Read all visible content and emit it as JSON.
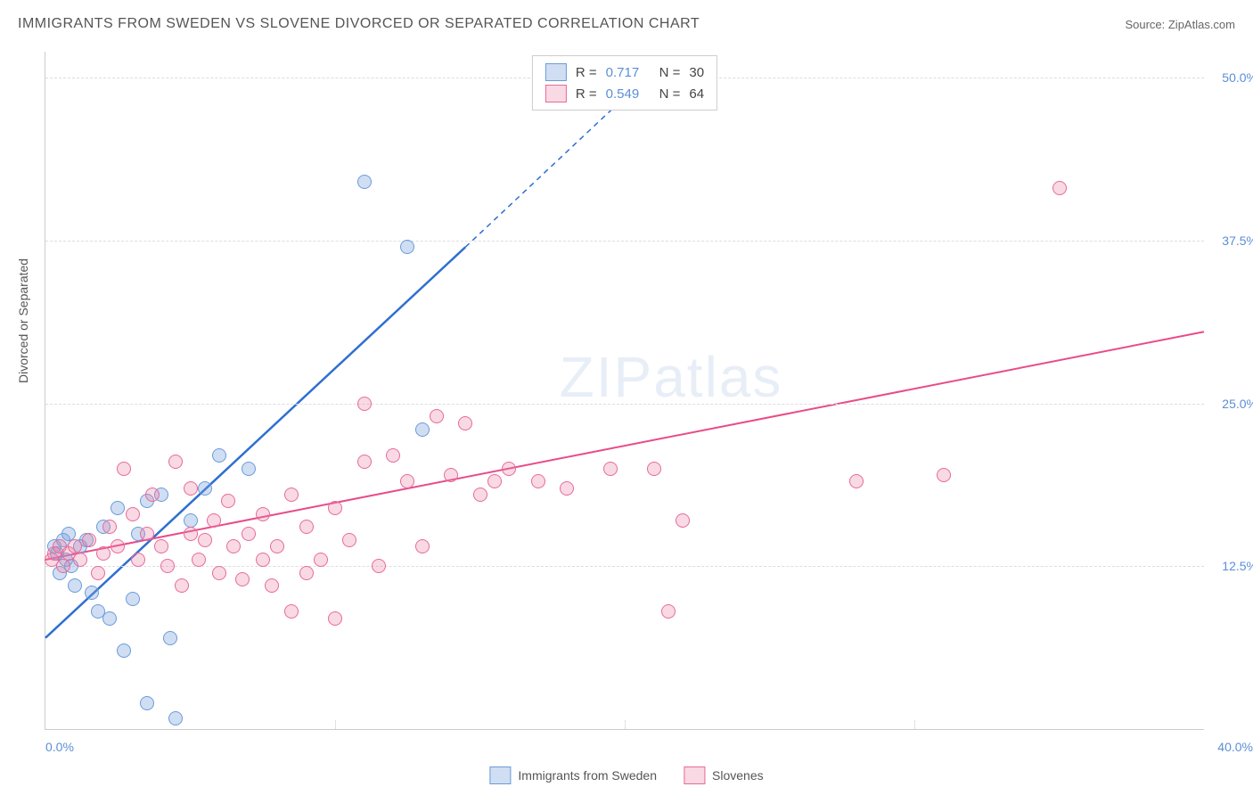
{
  "title": "IMMIGRANTS FROM SWEDEN VS SLOVENE DIVORCED OR SEPARATED CORRELATION CHART",
  "source_prefix": "Source: ",
  "source_name": "ZipAtlas.com",
  "ylabel": "Divorced or Separated",
  "watermark": "ZIPatlas",
  "chart": {
    "type": "scatter",
    "xlim": [
      0,
      40
    ],
    "ylim": [
      0,
      52
    ],
    "yticks": [
      12.5,
      25.0,
      37.5,
      50.0
    ],
    "ytick_labels": [
      "12.5%",
      "25.0%",
      "37.5%",
      "50.0%"
    ],
    "xtick_minor": [
      10,
      20,
      30
    ],
    "xtick_left": "0.0%",
    "xtick_right": "40.0%",
    "background_color": "#ffffff",
    "grid_color": "#dddddd",
    "axis_color": "#cccccc",
    "marker_radius": 8,
    "marker_border_width": 1.5,
    "series": [
      {
        "name": "Immigrants from Sweden",
        "fill": "rgba(120,160,220,0.35)",
        "stroke": "#6a9bd8",
        "line_color": "#2e6fd0",
        "line_width": 2.5,
        "r_label": "R =",
        "r_value": "0.717",
        "n_label": "N =",
        "n_value": "30",
        "regression": {
          "x1": 0,
          "y1": 7.0,
          "x2": 14.5,
          "y2": 37.0,
          "x2_dash": 20.0,
          "y2_dash": 48.5
        },
        "points": [
          [
            0.3,
            14.0
          ],
          [
            0.4,
            13.5
          ],
          [
            0.5,
            12.0
          ],
          [
            0.6,
            14.5
          ],
          [
            0.7,
            13.0
          ],
          [
            0.8,
            15.0
          ],
          [
            0.9,
            12.5
          ],
          [
            1.0,
            11.0
          ],
          [
            1.2,
            14.0
          ],
          [
            1.4,
            14.5
          ],
          [
            1.6,
            10.5
          ],
          [
            1.8,
            9.0
          ],
          [
            2.0,
            15.5
          ],
          [
            2.2,
            8.5
          ],
          [
            2.5,
            17.0
          ],
          [
            2.7,
            6.0
          ],
          [
            3.0,
            10.0
          ],
          [
            3.2,
            15.0
          ],
          [
            3.5,
            17.5
          ],
          [
            3.5,
            2.0
          ],
          [
            4.0,
            18.0
          ],
          [
            4.3,
            7.0
          ],
          [
            4.5,
            0.8
          ],
          [
            5.0,
            16.0
          ],
          [
            5.5,
            18.5
          ],
          [
            6.0,
            21.0
          ],
          [
            7.0,
            20.0
          ],
          [
            11.0,
            42.0
          ],
          [
            12.5,
            37.0
          ],
          [
            13.0,
            23.0
          ]
        ]
      },
      {
        "name": "Slovenes",
        "fill": "rgba(235,130,165,0.30)",
        "stroke": "#e76a9a",
        "line_color": "#e84c88",
        "line_width": 2.0,
        "r_label": "R =",
        "r_value": "0.549",
        "n_label": "N =",
        "n_value": "64",
        "regression": {
          "x1": 0,
          "y1": 13.0,
          "x2": 40,
          "y2": 30.5
        },
        "points": [
          [
            0.2,
            13.0
          ],
          [
            0.3,
            13.5
          ],
          [
            0.5,
            14.0
          ],
          [
            0.6,
            12.5
          ],
          [
            0.8,
            13.5
          ],
          [
            1.0,
            14.0
          ],
          [
            1.2,
            13.0
          ],
          [
            1.5,
            14.5
          ],
          [
            1.8,
            12.0
          ],
          [
            2.0,
            13.5
          ],
          [
            2.2,
            15.5
          ],
          [
            2.5,
            14.0
          ],
          [
            2.7,
            20.0
          ],
          [
            3.0,
            16.5
          ],
          [
            3.2,
            13.0
          ],
          [
            3.5,
            15.0
          ],
          [
            3.7,
            18.0
          ],
          [
            4.0,
            14.0
          ],
          [
            4.2,
            12.5
          ],
          [
            4.5,
            20.5
          ],
          [
            4.7,
            11.0
          ],
          [
            5.0,
            15.0
          ],
          [
            5.0,
            18.5
          ],
          [
            5.3,
            13.0
          ],
          [
            5.5,
            14.5
          ],
          [
            5.8,
            16.0
          ],
          [
            6.0,
            12.0
          ],
          [
            6.3,
            17.5
          ],
          [
            6.5,
            14.0
          ],
          [
            6.8,
            11.5
          ],
          [
            7.0,
            15.0
          ],
          [
            7.5,
            13.0
          ],
          [
            7.5,
            16.5
          ],
          [
            7.8,
            11.0
          ],
          [
            8.0,
            14.0
          ],
          [
            8.5,
            9.0
          ],
          [
            8.5,
            18.0
          ],
          [
            9.0,
            12.0
          ],
          [
            9.0,
            15.5
          ],
          [
            9.5,
            13.0
          ],
          [
            10.0,
            17.0
          ],
          [
            10.0,
            8.5
          ],
          [
            10.5,
            14.5
          ],
          [
            11.0,
            20.5
          ],
          [
            11.0,
            25.0
          ],
          [
            11.5,
            12.5
          ],
          [
            12.0,
            21.0
          ],
          [
            12.5,
            19.0
          ],
          [
            13.0,
            14.0
          ],
          [
            13.5,
            24.0
          ],
          [
            14.0,
            19.5
          ],
          [
            14.5,
            23.5
          ],
          [
            15.0,
            18.0
          ],
          [
            15.5,
            19.0
          ],
          [
            16.0,
            20.0
          ],
          [
            17.0,
            19.0
          ],
          [
            18.0,
            18.5
          ],
          [
            19.5,
            20.0
          ],
          [
            21.5,
            9.0
          ],
          [
            22.0,
            16.0
          ],
          [
            28.0,
            19.0
          ],
          [
            31.0,
            19.5
          ],
          [
            35.0,
            41.5
          ],
          [
            21.0,
            20.0
          ]
        ]
      }
    ]
  }
}
